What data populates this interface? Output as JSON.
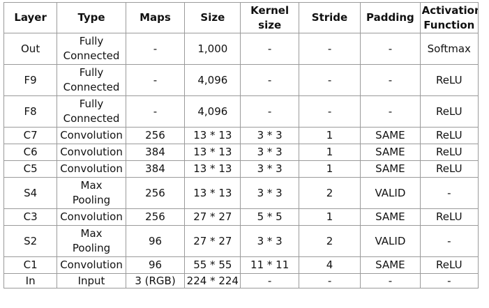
{
  "table": {
    "headers": [
      [
        "Layer"
      ],
      [
        "Type"
      ],
      [
        "Maps"
      ],
      [
        "Size"
      ],
      [
        "Kernel",
        "size"
      ],
      [
        "Stride"
      ],
      [
        "Padding"
      ],
      [
        "Activation",
        "Function"
      ]
    ],
    "rows": [
      {
        "layer": "Out",
        "type": [
          "Fully",
          "Connected"
        ],
        "maps": "-",
        "size": "1,000",
        "kernel": "-",
        "stride": "-",
        "padding": "-",
        "activation": "Softmax"
      },
      {
        "layer": "F9",
        "type": [
          "Fully",
          "Connected"
        ],
        "maps": "-",
        "size": "4,096",
        "kernel": "-",
        "stride": "-",
        "padding": "-",
        "activation": "ReLU"
      },
      {
        "layer": "F8",
        "type": [
          "Fully",
          "Connected"
        ],
        "maps": "-",
        "size": "4,096",
        "kernel": "-",
        "stride": "-",
        "padding": "-",
        "activation": "ReLU"
      },
      {
        "layer": "C7",
        "type": [
          "Convolution"
        ],
        "maps": "256",
        "size": "13 * 13",
        "kernel": "3 * 3",
        "stride": "1",
        "padding": "SAME",
        "activation": "ReLU"
      },
      {
        "layer": "C6",
        "type": [
          "Convolution"
        ],
        "maps": "384",
        "size": "13 * 13",
        "kernel": "3 * 3",
        "stride": "1",
        "padding": "SAME",
        "activation": "ReLU"
      },
      {
        "layer": "C5",
        "type": [
          "Convolution"
        ],
        "maps": "384",
        "size": "13 * 13",
        "kernel": "3 * 3",
        "stride": "1",
        "padding": "SAME",
        "activation": "ReLU"
      },
      {
        "layer": "S4",
        "type": [
          "Max",
          "Pooling"
        ],
        "maps": "256",
        "size": "13 * 13",
        "kernel": "3 * 3",
        "stride": "2",
        "padding": "VALID",
        "activation": "-"
      },
      {
        "layer": "C3",
        "type": [
          "Convolution"
        ],
        "maps": "256",
        "size": "27 * 27",
        "kernel": "5 * 5",
        "stride": "1",
        "padding": "SAME",
        "activation": "ReLU"
      },
      {
        "layer": "S2",
        "type": [
          "Max",
          "Pooling"
        ],
        "maps": "96",
        "size": "27 * 27",
        "kernel": "3 * 3",
        "stride": "2",
        "padding": "VALID",
        "activation": "-"
      },
      {
        "layer": "C1",
        "type": [
          "Convolution"
        ],
        "maps": "96",
        "size": "55 * 55",
        "kernel": "11 * 11",
        "stride": "4",
        "padding": "SAME",
        "activation": "ReLU"
      },
      {
        "layer": "In",
        "type": [
          "Input"
        ],
        "maps": "3 (RGB)",
        "size": "224 * 224",
        "kernel": "-",
        "stride": "-",
        "padding": "-",
        "activation": "-"
      }
    ]
  }
}
